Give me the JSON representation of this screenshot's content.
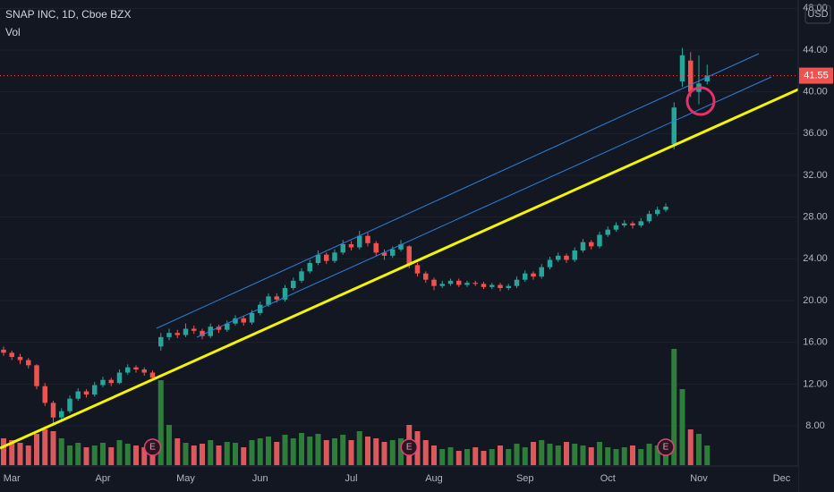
{
  "chart_data": {
    "type": "candlestick",
    "title": "SNAP INC, 1D, Cboe BZX",
    "indicator": "Vol",
    "currency": "USD",
    "up_color": "#26a69a",
    "down_color": "#ef5350",
    "volume_up_color": "#2f7d3a",
    "volume_down_color": "#d9595c",
    "grid": true,
    "ylim": [
      4.23,
      48.8
    ],
    "yticks": [
      {
        "value": 8,
        "label": "8.00"
      },
      {
        "value": 12,
        "label": "12.00"
      },
      {
        "value": 16,
        "label": "16.00"
      },
      {
        "value": 20,
        "label": "20.00"
      },
      {
        "value": 24,
        "label": "24.00"
      },
      {
        "value": 28,
        "label": "28.00"
      },
      {
        "value": 32,
        "label": "32.00"
      },
      {
        "value": 36,
        "label": "36.00"
      },
      {
        "value": 40,
        "label": "40.00"
      },
      {
        "value": 44,
        "label": "44.00"
      },
      {
        "value": 48,
        "label": "48.00"
      }
    ],
    "categories": [
      null,
      "Mar",
      null,
      null,
      null,
      null,
      null,
      null,
      null,
      null,
      null,
      null,
      "Apr",
      null,
      null,
      null,
      null,
      null,
      null,
      null,
      null,
      null,
      "May",
      null,
      null,
      null,
      null,
      null,
      null,
      null,
      null,
      "Jun",
      null,
      null,
      null,
      null,
      null,
      null,
      null,
      null,
      null,
      null,
      "Jul",
      null,
      null,
      null,
      null,
      null,
      null,
      null,
      null,
      null,
      "Aug",
      null,
      null,
      null,
      null,
      null,
      null,
      null,
      null,
      null,
      null,
      "Sep",
      null,
      null,
      null,
      null,
      null,
      null,
      null,
      null,
      null,
      "Oct",
      null,
      null,
      null,
      null,
      null,
      null,
      null,
      null,
      null,
      null,
      "Nov",
      null,
      null,
      null,
      null,
      null,
      null,
      null,
      null,
      null,
      "Dec",
      null
    ],
    "open": [
      15.3,
      15.0,
      14.6,
      14.3,
      13.8,
      11.8,
      10.2,
      8.8,
      9.4,
      10.6,
      11.3,
      11.0,
      11.9,
      12.4,
      12.1,
      13.1,
      13.6,
      13.4,
      13.1,
      15.6,
      16.5,
      16.9,
      16.7,
      17.3,
      17.1,
      16.6,
      17.5,
      17.2,
      17.8,
      18.3,
      17.9,
      18.8,
      19.6,
      20.4,
      20.1,
      21.2,
      21.9,
      22.8,
      23.6,
      24.4,
      23.8,
      24.6,
      25.4,
      25.1,
      26.2,
      25.5,
      24.6,
      24.3,
      24.9,
      25.2,
      23.4,
      22.6,
      22.0,
      21.4,
      21.6,
      21.9,
      21.5,
      21.7,
      21.6,
      21.3,
      21.5,
      21.2,
      21.4,
      22.0,
      22.6,
      22.3,
      23.2,
      23.9,
      24.3,
      23.9,
      24.8,
      25.6,
      25.2,
      26.3,
      26.8,
      27.2,
      27.4,
      27.2,
      27.6,
      28.3,
      28.7,
      35.0,
      41.0,
      43.0,
      40.0,
      41.0,
      null,
      null,
      null,
      null,
      null,
      null,
      null,
      null,
      null,
      null
    ],
    "high": [
      15.6,
      15.2,
      14.9,
      14.5,
      13.9,
      12.1,
      10.4,
      9.7,
      10.9,
      11.6,
      11.5,
      12.2,
      12.7,
      12.6,
      13.4,
      13.9,
      13.8,
      13.6,
      13.3,
      16.9,
      17.3,
      17.2,
      17.8,
      17.6,
      17.3,
      17.8,
      17.7,
      18.1,
      18.6,
      18.5,
      19.1,
      19.9,
      20.7,
      20.7,
      21.5,
      22.2,
      23.1,
      23.9,
      24.8,
      24.6,
      24.9,
      25.8,
      25.7,
      26.7,
      26.5,
      25.7,
      24.9,
      25.2,
      25.8,
      25.3,
      23.6,
      22.8,
      22.2,
      21.9,
      22.1,
      22.1,
      21.9,
      21.9,
      21.8,
      21.7,
      21.7,
      21.6,
      22.3,
      22.9,
      22.8,
      23.5,
      24.2,
      24.6,
      24.5,
      25.1,
      25.9,
      25.8,
      26.6,
      27.1,
      27.5,
      27.7,
      27.6,
      27.9,
      28.6,
      29.0,
      29.3,
      39.0,
      44.2,
      43.8,
      43.5,
      42.6,
      null,
      null,
      null,
      null,
      null,
      null,
      null,
      null,
      null,
      null
    ],
    "low": [
      14.7,
      14.3,
      13.9,
      13.5,
      11.5,
      9.9,
      8.2,
      8.5,
      9.2,
      10.4,
      10.7,
      10.8,
      11.7,
      11.8,
      12.0,
      12.9,
      13.1,
      12.8,
      12.3,
      15.2,
      16.2,
      16.4,
      16.5,
      16.8,
      16.3,
      16.4,
      16.9,
      17.0,
      17.6,
      17.6,
      17.7,
      18.6,
      19.4,
      19.8,
      19.9,
      21.0,
      21.7,
      22.6,
      23.4,
      23.5,
      23.6,
      24.4,
      24.8,
      24.9,
      25.2,
      24.3,
      23.9,
      24.1,
      24.7,
      23.1,
      22.3,
      21.7,
      21.0,
      21.2,
      21.4,
      21.3,
      21.3,
      21.4,
      21.1,
      21.1,
      20.9,
      21.0,
      21.2,
      21.8,
      22.0,
      22.1,
      23.0,
      23.7,
      23.6,
      23.7,
      24.6,
      24.9,
      25.0,
      26.1,
      26.6,
      27.0,
      26.9,
      27.0,
      27.4,
      28.1,
      28.5,
      34.5,
      40.5,
      39.5,
      38.8,
      40.7,
      null,
      null,
      null,
      null,
      null,
      null,
      null,
      null,
      null,
      null
    ],
    "close": [
      15.0,
      14.6,
      14.3,
      13.8,
      11.8,
      10.2,
      8.8,
      9.4,
      10.6,
      11.3,
      11.0,
      11.9,
      12.4,
      12.1,
      13.1,
      13.6,
      13.4,
      13.1,
      12.6,
      16.5,
      16.9,
      16.7,
      17.3,
      17.1,
      16.6,
      17.5,
      17.2,
      17.8,
      18.3,
      17.9,
      18.8,
      19.6,
      20.4,
      20.1,
      21.2,
      21.9,
      22.8,
      23.6,
      24.4,
      23.8,
      24.6,
      25.4,
      25.1,
      26.2,
      25.5,
      24.6,
      24.3,
      24.9,
      25.4,
      23.4,
      22.6,
      22.0,
      21.4,
      21.6,
      21.9,
      21.5,
      21.7,
      21.6,
      21.3,
      21.5,
      21.2,
      21.4,
      22.0,
      22.6,
      22.3,
      23.2,
      23.9,
      24.3,
      23.9,
      24.8,
      25.6,
      25.2,
      26.3,
      26.8,
      27.2,
      27.4,
      27.2,
      27.6,
      28.3,
      28.7,
      29.0,
      38.5,
      43.5,
      40.0,
      40.8,
      41.55,
      null,
      null,
      null,
      null,
      null,
      null,
      null,
      null,
      null,
      null
    ],
    "volume": [
      30,
      28,
      25,
      22,
      35,
      40,
      38,
      30,
      22,
      25,
      20,
      22,
      25,
      20,
      28,
      24,
      22,
      20,
      26,
      95,
      45,
      30,
      25,
      22,
      24,
      28,
      22,
      26,
      25,
      20,
      28,
      30,
      32,
      26,
      34,
      30,
      36,
      32,
      35,
      28,
      30,
      34,
      28,
      38,
      32,
      30,
      26,
      28,
      30,
      45,
      38,
      28,
      22,
      18,
      20,
      16,
      18,
      20,
      16,
      18,
      22,
      18,
      24,
      20,
      26,
      28,
      24,
      22,
      26,
      24,
      22,
      20,
      26,
      20,
      18,
      20,
      22,
      18,
      24,
      22,
      20,
      130,
      85,
      40,
      35,
      22,
      null,
      null,
      null,
      null,
      null,
      null,
      null,
      null,
      null,
      null
    ],
    "events": [
      {
        "at": 18,
        "label": "E"
      },
      {
        "at": 49,
        "label": "E"
      },
      {
        "at": 80,
        "label": "E"
      }
    ]
  }
}
